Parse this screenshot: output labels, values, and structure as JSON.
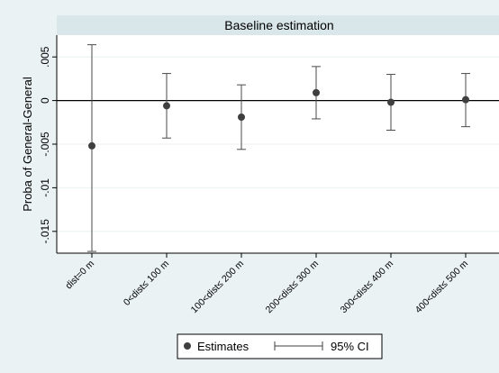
{
  "chart_data": {
    "type": "scatter",
    "title": "Baseline estimation",
    "xlabel": "",
    "ylabel": "Proba of General-General",
    "categories": [
      "dist=0 m",
      "0<dist≤ 100 m",
      "100<dist≤ 200 m",
      "200<dist≤ 300 m",
      "300<dist≤ 400 m",
      "400<dist≤ 500 m"
    ],
    "ylim": [
      -0.0175,
      0.0075
    ],
    "yticks": [
      0.005,
      0,
      -0.005,
      -0.01,
      -0.015
    ],
    "ytick_labels": [
      ".005",
      "0",
      "-.005",
      "-.01",
      "-.015"
    ],
    "reference_line_y": 0,
    "grid": true,
    "legend_position": "bottom",
    "series": [
      {
        "name": "Estimates",
        "values": [
          -0.0052,
          -0.0006,
          -0.0019,
          0.0009,
          -0.0002,
          0.0001
        ]
      },
      {
        "name": "95% CI",
        "lower": [
          -0.0173,
          -0.0043,
          -0.0056,
          -0.0021,
          -0.0034,
          -0.003
        ],
        "upper": [
          0.0064,
          0.0031,
          0.0018,
          0.0039,
          0.003,
          0.0031
        ]
      }
    ],
    "legend": {
      "estimates_label": "Estimates",
      "ci_label": "95% CI"
    }
  }
}
